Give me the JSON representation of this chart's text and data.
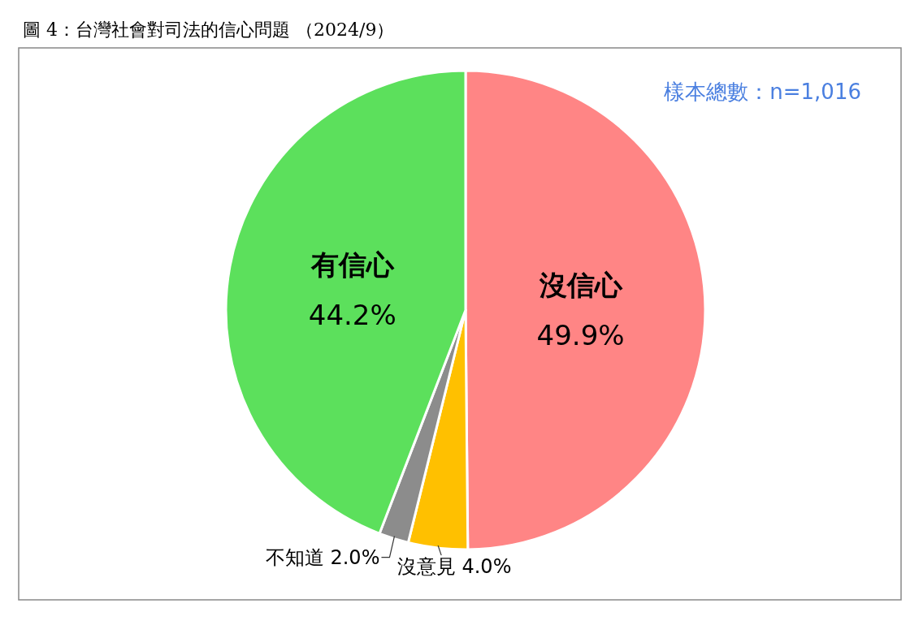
{
  "chart_data": {
    "type": "pie",
    "title": "圖 4：台灣社會對司法的信心問題 （2024/9）",
    "categories": [
      "沒信心",
      "沒意見",
      "不知道",
      "有信心"
    ],
    "values": [
      49.9,
      4.0,
      2.0,
      44.2
    ],
    "colors": [
      "#ff8585",
      "#ffc000",
      "#8c8c8c",
      "#5ce05c"
    ],
    "value_labels": [
      "49.9%",
      "4.0%",
      "2.0%",
      "44.2%"
    ],
    "annotations": [
      "樣本總數：n=1,016"
    ]
  }
}
